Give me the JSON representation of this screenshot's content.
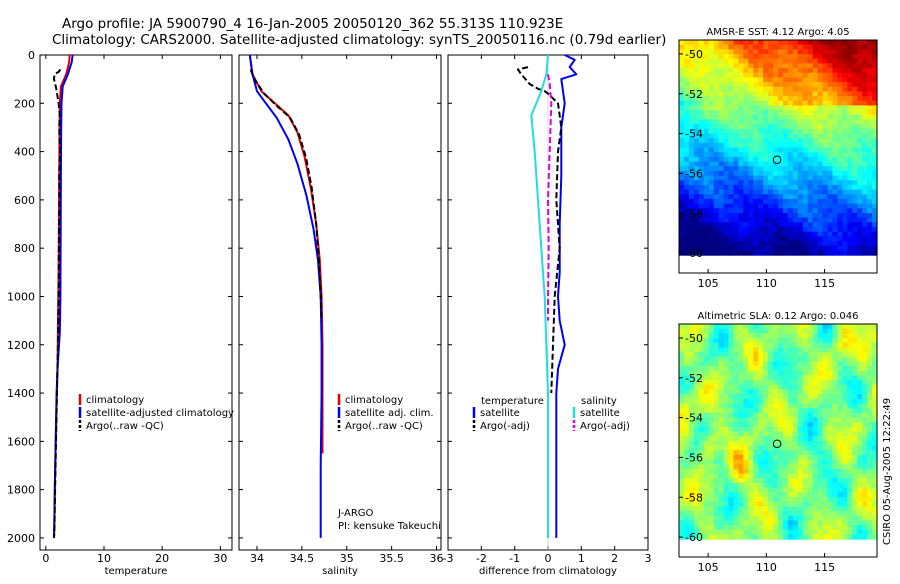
{
  "titles": {
    "line1": "Argo profile: JA 5900790_4 16-Jan-2005 20050120_362 55.313S 110.923E",
    "line2": "Climatology: CARS2000. Satellite-adjusted climatology: synTS_20050116.nc (0.79d earlier)"
  },
  "side_label": "CSIRO 05-Aug-2005 12:22:49",
  "colors": {
    "climatology": "#dd0000",
    "satellite": "#0000ee",
    "argo": "#000000",
    "salinity_satellite": "#22dddd",
    "salinity_argo": "#dd00dd"
  },
  "chart_data": [
    {
      "id": "temperature",
      "type": "line",
      "xlabel": "temperature",
      "ylabel": "",
      "xlim": [
        -1,
        32
      ],
      "ylim": [
        0,
        2050
      ],
      "y_inverted": true,
      "xticks": [
        0,
        10,
        20,
        30
      ],
      "xtick_labels": [
        "0",
        "10",
        "20",
        "30"
      ],
      "yticks": [
        0,
        200,
        400,
        600,
        800,
        1000,
        1200,
        1400,
        1600,
        1800,
        2000
      ],
      "ytick_labels": [
        "0",
        "200",
        "400",
        "600",
        "800",
        "1000",
        "1200",
        "1400",
        "1600",
        "1800",
        "2000"
      ],
      "legend": [
        "climatology",
        "satellite-adjusted climatology",
        "Argo(..raw -QC)"
      ],
      "series": [
        {
          "name": "climatology",
          "color": "climatology",
          "dash": false,
          "x": [
            4.1,
            4.0,
            3.5,
            2.6,
            2.4,
            2.35,
            2.3,
            2.25,
            2.2,
            2.1,
            2.0,
            1.9,
            1.7,
            1.55,
            1.45,
            1.4
          ],
          "y": [
            0,
            30,
            80,
            130,
            200,
            300,
            500,
            700,
            900,
            1100,
            1300,
            1400,
            1600,
            1800,
            1950,
            2000
          ]
        },
        {
          "name": "satellite-adjusted climatology",
          "color": "satellite",
          "dash": false,
          "x": [
            4.6,
            4.45,
            3.8,
            2.9,
            2.7,
            2.65,
            2.6,
            2.55,
            2.5,
            2.4,
            2.0,
            1.85,
            1.7,
            1.55,
            1.45,
            1.4
          ],
          "y": [
            0,
            30,
            80,
            130,
            200,
            300,
            500,
            700,
            1000,
            1150,
            1300,
            1400,
            1600,
            1800,
            1950,
            2000
          ]
        },
        {
          "name": "Argo(..raw -QC)",
          "color": "argo",
          "dash": true,
          "x": [
            2.5,
            2.2,
            1.5,
            1.4,
            1.8,
            2.2,
            2.4,
            2.3,
            2.45,
            2.3,
            2.35,
            2.25,
            2.2,
            2.1,
            1.9,
            1.75,
            1.6,
            1.5,
            1.4
          ],
          "y": [
            60,
            70,
            80,
            100,
            140,
            200,
            250,
            300,
            400,
            500,
            600,
            800,
            1000,
            1200,
            1400,
            1600,
            1800,
            1950,
            2000
          ]
        }
      ]
    },
    {
      "id": "salinity",
      "type": "line",
      "xlabel": "salinity",
      "ylabel": "",
      "xlim": [
        33.8,
        36.05
      ],
      "ylim": [
        0,
        2050
      ],
      "y_inverted": true,
      "xticks": [
        34,
        34.5,
        35,
        35.5,
        36
      ],
      "xtick_labels": [
        "34",
        "34.5",
        "35",
        "35.5",
        "36"
      ],
      "yticks": [
        0,
        200,
        400,
        600,
        800,
        1000,
        1200,
        1400,
        1600,
        1800,
        2000
      ],
      "legend": [
        "climatology",
        "satellite adj. clim.",
        "Argo(..raw -QC)"
      ],
      "annotation_lines": [
        "J-ARGO",
        "PI: kensuke Takeuchi"
      ],
      "series": [
        {
          "name": "climatology",
          "color": "climatology",
          "dash": false,
          "x": [
            33.92,
            33.95,
            34.05,
            34.2,
            34.35,
            34.45,
            34.53,
            34.6,
            34.66,
            34.7,
            34.72,
            34.73,
            34.73,
            34.73,
            34.73
          ],
          "y": [
            0,
            80,
            150,
            200,
            250,
            320,
            420,
            550,
            700,
            850,
            1000,
            1200,
            1400,
            1600,
            1650
          ]
        },
        {
          "name": "satellite adj. clim.",
          "color": "satellite",
          "dash": false,
          "x": [
            33.92,
            33.95,
            34.0,
            34.1,
            34.22,
            34.35,
            34.45,
            34.55,
            34.63,
            34.68,
            34.71,
            34.72,
            34.72,
            34.71,
            34.71
          ],
          "y": [
            0,
            80,
            150,
            200,
            260,
            350,
            450,
            580,
            720,
            850,
            1000,
            1200,
            1400,
            1700,
            2000
          ]
        },
        {
          "name": "Argo(..raw -QC)",
          "color": "argo",
          "dash": true,
          "x": [
            33.93,
            33.97,
            34.08,
            34.22,
            34.37,
            34.47,
            34.55,
            34.61,
            34.66,
            34.69,
            34.71,
            34.72
          ],
          "y": [
            60,
            100,
            160,
            210,
            260,
            330,
            430,
            550,
            700,
            850,
            1000,
            1100
          ]
        }
      ]
    },
    {
      "id": "difference",
      "type": "line",
      "xlabel": "difference from climatology",
      "ylabel": "",
      "xlim": [
        -3,
        3
      ],
      "ylim": [
        0,
        2050
      ],
      "y_inverted": true,
      "xticks": [
        -3,
        -2,
        -1,
        0,
        1,
        2,
        3
      ],
      "xtick_labels": [
        "-3",
        "-2",
        "-1",
        "0",
        "1",
        "2",
        "3"
      ],
      "yticks": [
        0,
        200,
        400,
        600,
        800,
        1000,
        1200,
        1400,
        1600,
        1800,
        2000
      ],
      "legend_left": {
        "heading": "temperature",
        "items": [
          "satellite",
          "Argo(-adj)"
        ]
      },
      "legend_right": {
        "heading": "salinity",
        "items": [
          "satellite",
          "Argo(-adj)"
        ]
      },
      "series": [
        {
          "name": "temperature satellite",
          "color": "satellite",
          "dash": false,
          "x": [
            0.5,
            0.8,
            0.65,
            0.85,
            0.4,
            0.5,
            0.4,
            0.4,
            0.35,
            0.35,
            0.3,
            0.35,
            0.5,
            0.3,
            0.25,
            0.25,
            0.25
          ],
          "y": [
            0,
            20,
            50,
            80,
            100,
            200,
            300,
            500,
            700,
            900,
            1000,
            1100,
            1200,
            1300,
            1400,
            1700,
            2000
          ]
        },
        {
          "name": "temperature Argo(-adj)",
          "color": "argo",
          "dash": true,
          "x": [
            -0.6,
            -0.9,
            -0.8,
            -0.55,
            -0.3,
            -0.1,
            0.0,
            0.3,
            0.4,
            0.3,
            0.25,
            0.35,
            0.2,
            0.15,
            0.1
          ],
          "y": [
            50,
            60,
            80,
            120,
            140,
            150,
            160,
            200,
            300,
            400,
            600,
            800,
            1000,
            1200,
            1400
          ]
        },
        {
          "name": "salinity satellite",
          "color": "salinity_satellite",
          "dash": false,
          "x": [
            0.0,
            -0.05,
            -0.2,
            -0.5,
            -0.4,
            -0.3,
            -0.2,
            -0.1,
            -0.05,
            0.0,
            0.0,
            0.0
          ],
          "y": [
            0,
            80,
            150,
            250,
            400,
            600,
            800,
            1000,
            1200,
            1400,
            1700,
            2000
          ]
        },
        {
          "name": "salinity Argo(-adj)",
          "color": "salinity_argo",
          "dash": true,
          "x": [
            0.0,
            0.05,
            0.1,
            0.05,
            0.0,
            0.02,
            0.0,
            0.0
          ],
          "y": [
            80,
            120,
            200,
            400,
            600,
            800,
            1000,
            1100
          ]
        }
      ]
    },
    {
      "id": "sst_map",
      "type": "heatmap",
      "title": "AMSR-E SST: 4.12 Argo: 4.05",
      "xlim": [
        102.5,
        119.5
      ],
      "ylim": [
        -61,
        -49.3
      ],
      "xticks": [
        105,
        110,
        115
      ],
      "xtick_labels": [
        "105",
        "110",
        "115"
      ],
      "yticks": [
        -50,
        -52,
        -54,
        -56,
        -58,
        -60
      ],
      "ytick_labels": [
        "-50",
        "-52",
        "-54",
        "-56",
        "-58",
        "-60"
      ],
      "data_lat_min": -60.1,
      "colormap": "jet",
      "value_range": [
        -1,
        12
      ],
      "argo_position": {
        "lon": 110.923,
        "lat": -55.313
      }
    },
    {
      "id": "sla_map",
      "type": "heatmap",
      "title": "Altimetric SLA: 0.12 Argo: 0.046",
      "xlim": [
        102.5,
        119.5
      ],
      "ylim": [
        -61,
        -49.3
      ],
      "xticks": [
        105,
        110,
        115
      ],
      "xtick_labels": [
        "105",
        "110",
        "115"
      ],
      "yticks": [
        -50,
        -52,
        -54,
        -56,
        -58,
        -60
      ],
      "ytick_labels": [
        "-50",
        "-52",
        "-54",
        "-56",
        "-58",
        "-60"
      ],
      "data_lat_min": -60.1,
      "colormap": "jet",
      "value_range": [
        -0.6,
        0.6
      ],
      "argo_position": {
        "lon": 110.923,
        "lat": -55.313
      }
    }
  ]
}
